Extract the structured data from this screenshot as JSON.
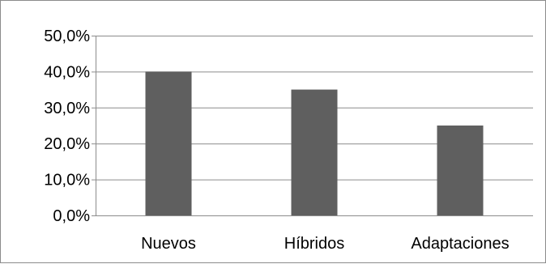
{
  "chart_data": {
    "type": "bar",
    "title": "",
    "xlabel": "",
    "ylabel": "",
    "categories": [
      "Nuevos",
      "Híbridos",
      "Adaptaciones"
    ],
    "values": [
      0.4,
      0.35,
      0.25
    ],
    "ylim": [
      0,
      0.5
    ],
    "y_ticks": [
      0,
      0.1,
      0.2,
      0.3,
      0.4,
      0.5
    ],
    "y_tick_labels": [
      "0,0%",
      "10,0%",
      "20,0%",
      "30,0%",
      "40,0%",
      "50,0%"
    ],
    "grid": true,
    "legend": "none",
    "colors": {
      "bar": "#5f5f5f",
      "grid": "#8c8c8c",
      "axis": "#8c8c8c",
      "text": "#000000"
    }
  }
}
